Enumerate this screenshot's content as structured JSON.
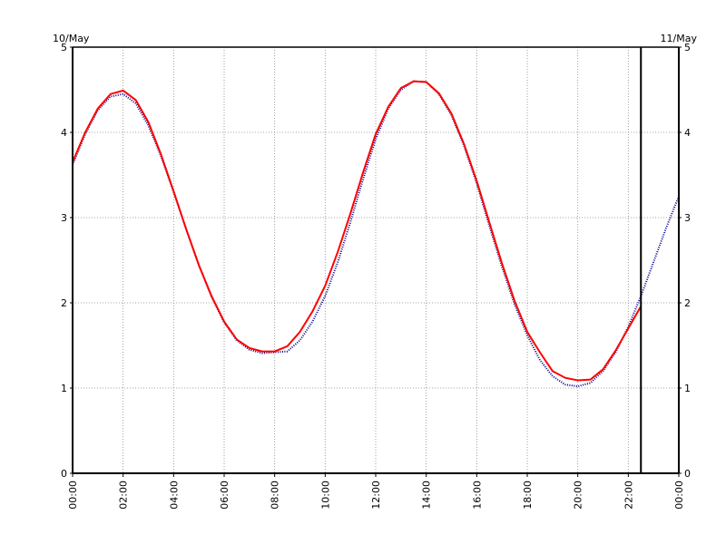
{
  "chart_data": {
    "type": "line",
    "title": "",
    "xlabel": "",
    "ylabel": "",
    "date_labels": {
      "left": "10/May",
      "right": "11/May"
    },
    "x_ticks": [
      "00:00",
      "02:00",
      "04:00",
      "06:00",
      "08:00",
      "10:00",
      "12:00",
      "14:00",
      "16:00",
      "18:00",
      "20:00",
      "22:00",
      "00:00"
    ],
    "x_range_hours": [
      0,
      24
    ],
    "ylim": [
      0,
      5
    ],
    "y_ticks": [
      "0",
      "1",
      "2",
      "3",
      "4",
      "5"
    ],
    "grid": true,
    "current_time_marker_hours": 22.5,
    "series": [
      {
        "style": "dotted",
        "color": "#00008b",
        "x_hours": [
          0,
          0.5,
          1,
          1.5,
          2,
          2.5,
          3,
          3.5,
          4,
          4.5,
          5,
          5.5,
          6,
          6.5,
          7,
          7.5,
          8,
          8.5,
          9,
          9.5,
          10,
          10.5,
          11,
          11.5,
          12,
          12.5,
          13,
          13.5,
          14,
          14.5,
          15,
          15.5,
          16,
          16.5,
          17,
          17.5,
          18,
          18.5,
          19,
          19.5,
          20,
          20.5,
          21,
          21.5,
          22,
          22.5,
          23,
          23.5,
          24
        ],
        "values": [
          3.62,
          3.98,
          4.26,
          4.42,
          4.45,
          4.34,
          4.08,
          3.72,
          3.3,
          2.86,
          2.44,
          2.07,
          1.77,
          1.56,
          1.45,
          1.41,
          1.42,
          1.43,
          1.56,
          1.78,
          2.08,
          2.48,
          2.95,
          3.45,
          3.92,
          4.28,
          4.5,
          4.6,
          4.59,
          4.45,
          4.2,
          3.84,
          3.4,
          2.9,
          2.42,
          1.98,
          1.62,
          1.33,
          1.14,
          1.04,
          1.02,
          1.06,
          1.2,
          1.42,
          1.72,
          2.08,
          2.48,
          2.88,
          3.25
        ]
      },
      {
        "style": "solid",
        "color": "#ff0000",
        "x_hours": [
          0,
          0.5,
          1,
          1.5,
          2,
          2.5,
          3,
          3.5,
          4,
          4.5,
          5,
          5.5,
          6,
          6.5,
          7,
          7.5,
          8,
          8.5,
          9,
          9.5,
          10,
          10.5,
          11,
          11.5,
          12,
          12.5,
          13,
          13.5,
          14,
          14.5,
          15,
          15.5,
          16,
          16.5,
          17,
          17.5,
          18,
          18.5,
          19,
          19.5,
          20,
          20.5,
          21,
          21.5,
          22,
          22.5
        ],
        "values": [
          3.65,
          4.0,
          4.28,
          4.45,
          4.49,
          4.38,
          4.12,
          3.74,
          3.31,
          2.86,
          2.44,
          2.08,
          1.78,
          1.57,
          1.47,
          1.43,
          1.43,
          1.49,
          1.66,
          1.9,
          2.2,
          2.6,
          3.05,
          3.53,
          3.98,
          4.3,
          4.52,
          4.6,
          4.59,
          4.46,
          4.22,
          3.86,
          3.43,
          2.94,
          2.46,
          2.02,
          1.66,
          1.42,
          1.2,
          1.12,
          1.09,
          1.1,
          1.22,
          1.44,
          1.7,
          1.96
        ]
      }
    ]
  }
}
